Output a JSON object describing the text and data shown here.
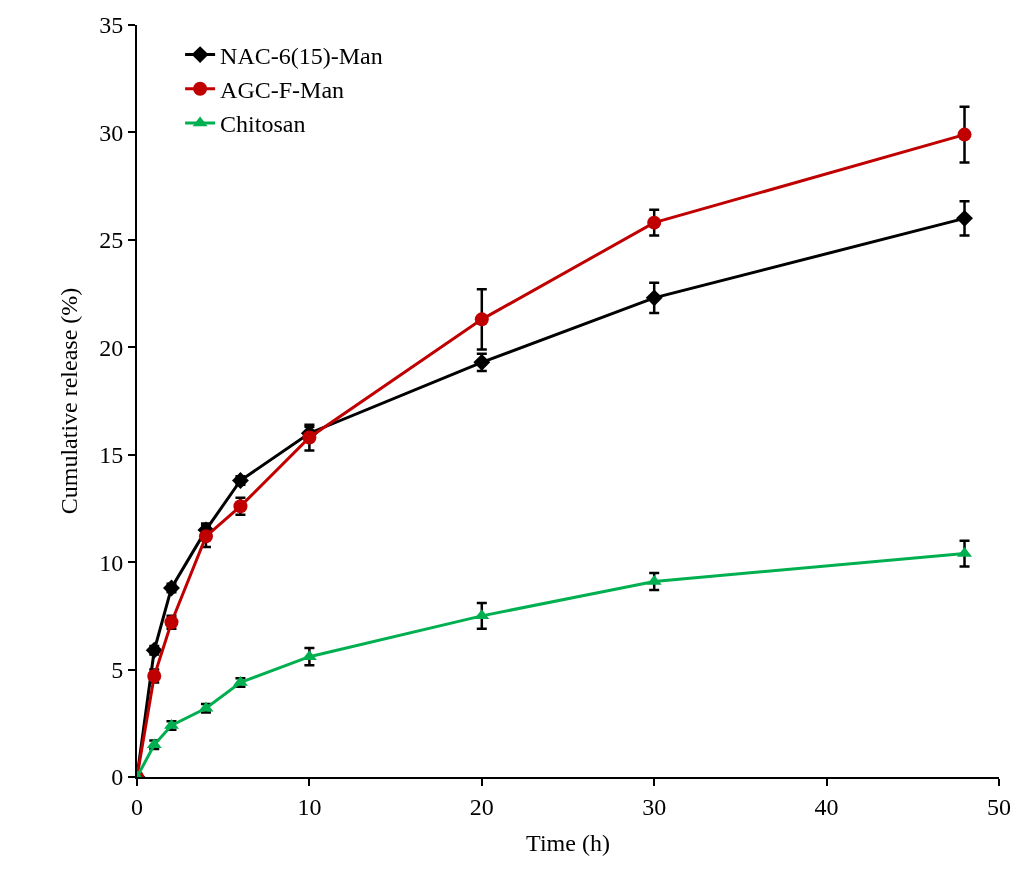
{
  "chart_data": {
    "type": "line",
    "xlabel": "Time (h)",
    "ylabel": "Cumulative release (%)",
    "x": [
      0,
      1,
      2,
      4,
      6,
      10,
      20,
      30,
      48
    ],
    "series": [
      {
        "name": "NAC-6(15)-Man",
        "color": "#000000",
        "marker": "diamond",
        "values": [
          0,
          5.9,
          8.8,
          11.5,
          13.8,
          16.0,
          19.3,
          22.3,
          26.0
        ],
        "errors": [
          0,
          0.2,
          0.2,
          0.3,
          0.2,
          0.3,
          0.4,
          0.7,
          0.8
        ]
      },
      {
        "name": "AGC-F-Man",
        "color": "#c00000",
        "marker": "circle",
        "values": [
          0,
          4.7,
          7.2,
          11.2,
          12.6,
          15.8,
          21.3,
          25.8,
          29.9
        ],
        "errors": [
          0,
          0.3,
          0.3,
          0.5,
          0.4,
          0.6,
          1.4,
          0.6,
          1.3
        ]
      },
      {
        "name": "Chitosan",
        "color": "#00b050",
        "marker": "triangle",
        "values": [
          0,
          1.5,
          2.4,
          3.2,
          4.4,
          5.6,
          7.5,
          9.1,
          10.4
        ],
        "errors": [
          0,
          0.2,
          0.2,
          0.2,
          0.2,
          0.4,
          0.6,
          0.4,
          0.6
        ]
      }
    ],
    "xlim": [
      0,
      50
    ],
    "xticks": [
      0,
      10,
      20,
      30,
      40,
      50
    ],
    "ylim": [
      0,
      35
    ],
    "yticks": [
      0,
      5,
      10,
      15,
      20,
      25,
      30,
      35
    ],
    "legend": "top left",
    "line_style": "solid"
  }
}
